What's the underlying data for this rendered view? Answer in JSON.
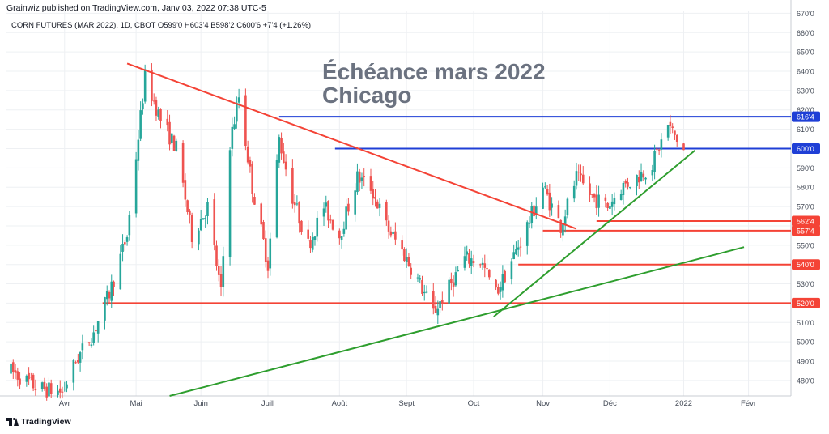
{
  "header": {
    "published": "Grainwiz published on TradingView.com, Janv 03, 2022 07:38 UTC-5"
  },
  "footer": {
    "brand": "TradingView"
  },
  "colors": {
    "up": "#26a69a",
    "down": "#ef5350",
    "red_line": "#f44336",
    "blue_line": "#1f3fd6",
    "green_line": "#2e9e2e",
    "annotation": "#6b7280"
  },
  "chart_data": {
    "type": "candlestick",
    "symbol_line": "CORN FUTURES (MAR 2022), 1D, CBOT  O599'0  H603'4  B598'2  C600'6  +7'4 (+1.26%)",
    "annotation": [
      "Échéance mars 2022",
      "Chicago"
    ],
    "x_range": [
      "2021-03-06",
      "2022-02-20"
    ],
    "y_range": [
      472,
      671
    ],
    "grid": true,
    "month_ticks": [
      {
        "date": "2021-04-01",
        "label": "Avr"
      },
      {
        "date": "2021-05-03",
        "label": "Mai"
      },
      {
        "date": "2021-06-01",
        "label": "Juin"
      },
      {
        "date": "2021-07-01",
        "label": "Juill"
      },
      {
        "date": "2021-08-02",
        "label": "Août"
      },
      {
        "date": "2021-09-01",
        "label": "Sept"
      },
      {
        "date": "2021-10-01",
        "label": "Oct"
      },
      {
        "date": "2021-11-01",
        "label": "Nov"
      },
      {
        "date": "2021-12-01",
        "label": "Déc"
      },
      {
        "date": "2022-01-03",
        "label": "2022"
      },
      {
        "date": "2022-02-01",
        "label": "Févr"
      }
    ],
    "y_ticks": [
      {
        "value": 480,
        "label": "480'0"
      },
      {
        "value": 490,
        "label": "490'0"
      },
      {
        "value": 500,
        "label": "500'0"
      },
      {
        "value": 510,
        "label": "510'0"
      },
      {
        "value": 520,
        "label": "520'0"
      },
      {
        "value": 530,
        "label": "530'0"
      },
      {
        "value": 540,
        "label": "540'0"
      },
      {
        "value": 550,
        "label": "550'0"
      },
      {
        "value": 560,
        "label": "560'0"
      },
      {
        "value": 570,
        "label": "570'0"
      },
      {
        "value": 580,
        "label": "580'0"
      },
      {
        "value": 590,
        "label": "590'0"
      },
      {
        "value": 600,
        "label": "600'0"
      },
      {
        "value": 610,
        "label": "610'0"
      },
      {
        "value": 620,
        "label": "620'0"
      },
      {
        "value": 630,
        "label": "630'0"
      },
      {
        "value": 640,
        "label": "640'0"
      },
      {
        "value": 650,
        "label": "650'0"
      },
      {
        "value": 660,
        "label": "660'0"
      },
      {
        "value": 670,
        "label": "670'0"
      }
    ],
    "price_labels": [
      {
        "value": 616.5,
        "label": "616'4",
        "color": "#1f3fd6"
      },
      {
        "value": 600,
        "label": "600'0",
        "color": "#1f3fd6"
      },
      {
        "value": 562.5,
        "label": "562'4",
        "color": "#f44336"
      },
      {
        "value": 557.5,
        "label": "557'4",
        "color": "#f44336"
      },
      {
        "value": 540,
        "label": "540'0",
        "color": "#f44336"
      },
      {
        "value": 520,
        "label": "520'0",
        "color": "#f44336"
      }
    ],
    "horizontal_lines": [
      {
        "from": "2021-07-06",
        "to": "2022-02-20",
        "value": 616.5,
        "color": "#1f3fd6"
      },
      {
        "from": "2021-07-31",
        "to": "2022-02-20",
        "value": 600,
        "color": "#1f3fd6"
      },
      {
        "from": "2021-11-25",
        "to": "2022-02-20",
        "value": 562.5,
        "color": "#f44336"
      },
      {
        "from": "2021-11-01",
        "to": "2022-02-20",
        "value": 557.5,
        "color": "#f44336"
      },
      {
        "from": "2021-10-21",
        "to": "2022-02-20",
        "value": 540,
        "color": "#f44336"
      },
      {
        "from": "2021-04-18",
        "to": "2022-02-20",
        "value": 520,
        "color": "#f44336"
      }
    ],
    "trend_lines": [
      {
        "from": [
          "2021-04-29",
          644
        ],
        "to": [
          "2021-11-16",
          558.5
        ],
        "color": "#f44336"
      },
      {
        "from": [
          "2021-10-10",
          513
        ],
        "to": [
          "2022-01-08",
          599
        ],
        "color": "#2e9e2e"
      },
      {
        "from": [
          "2021-05-18",
          472
        ],
        "to": [
          "2022-01-30",
          549
        ],
        "color": "#2e9e2e"
      }
    ],
    "anchors": [
      [
        "2021-03-08",
        485
      ],
      [
        "2021-03-20",
        476
      ],
      [
        "2021-03-31",
        474
      ],
      [
        "2021-04-06",
        490
      ],
      [
        "2021-04-14",
        505
      ],
      [
        "2021-04-21",
        525
      ],
      [
        "2021-04-29",
        555
      ],
      [
        "2021-05-07",
        637
      ],
      [
        "2021-05-14",
        615
      ],
      [
        "2021-05-21",
        600
      ],
      [
        "2021-05-28",
        555
      ],
      [
        "2021-06-04",
        570
      ],
      [
        "2021-06-10",
        525
      ],
      [
        "2021-06-14",
        603
      ],
      [
        "2021-06-18",
        627
      ],
      [
        "2021-06-24",
        580
      ],
      [
        "2021-07-01",
        540
      ],
      [
        "2021-07-06",
        605
      ],
      [
        "2021-07-12",
        575
      ],
      [
        "2021-07-19",
        550
      ],
      [
        "2021-07-26",
        570
      ],
      [
        "2021-08-02",
        555
      ],
      [
        "2021-08-10",
        585
      ],
      [
        "2021-08-16",
        580
      ],
      [
        "2021-08-23",
        560
      ],
      [
        "2021-08-31",
        545
      ],
      [
        "2021-09-07",
        530
      ],
      [
        "2021-09-13",
        515
      ],
      [
        "2021-09-20",
        528
      ],
      [
        "2021-09-27",
        543
      ],
      [
        "2021-10-04",
        542
      ],
      [
        "2021-10-11",
        525
      ],
      [
        "2021-10-18",
        542
      ],
      [
        "2021-10-25",
        560
      ],
      [
        "2021-11-01",
        580
      ],
      [
        "2021-11-09",
        560
      ],
      [
        "2021-11-16",
        585
      ],
      [
        "2021-11-23",
        575
      ],
      [
        "2021-11-30",
        570
      ],
      [
        "2021-12-06",
        580
      ],
      [
        "2021-12-13",
        585
      ],
      [
        "2021-12-20",
        592
      ],
      [
        "2021-12-27",
        612
      ],
      [
        "2022-01-03",
        599
      ]
    ]
  }
}
